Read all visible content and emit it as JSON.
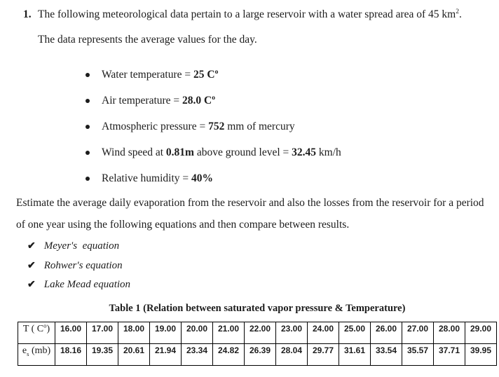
{
  "page": {
    "background": "#ffffff",
    "text_color": "#1c1c1c",
    "table_border_color": "#000000"
  },
  "icons": {
    "bullet": "•",
    "checkmark": "✔"
  },
  "problem": {
    "number": "1.",
    "line1": {
      "pre": "The following meteorological data pertain to a large reservoir with a water spread area of 45 km",
      "sup": "2",
      "post": "."
    },
    "line2": "The data represents the average values for the day."
  },
  "bullets": [
    {
      "segments": [
        {
          "t": "Water temperature = "
        },
        {
          "t": "25 C",
          "b": true
        },
        {
          "t": "o",
          "b": true,
          "sup": true
        }
      ]
    },
    {
      "segments": [
        {
          "t": "Air temperature = "
        },
        {
          "t": "28.0 C",
          "b": true
        },
        {
          "t": "o",
          "b": true,
          "sup": true
        }
      ]
    },
    {
      "segments": [
        {
          "t": "Atmospheric pressure = "
        },
        {
          "t": "752",
          "b": true
        },
        {
          "t": " mm of mercury"
        }
      ]
    },
    {
      "segments": [
        {
          "t": "Wind speed at "
        },
        {
          "t": "0.81m",
          "b": true
        },
        {
          "t": " above ground level = "
        },
        {
          "t": "32.45",
          "b": true
        },
        {
          "t": " km/h"
        }
      ]
    },
    {
      "segments": [
        {
          "t": "Relative humidity = "
        },
        {
          "t": "40%",
          "b": true
        }
      ]
    }
  ],
  "instruction": "Estimate the average daily evaporation from the reservoir and also the losses from the reservoir for a period of one year using the following equations and then compare between results.",
  "equations": [
    {
      "mark": "✔",
      "label": "Meyer's  equation"
    },
    {
      "mark": "✔",
      "label": "Rohwer's equation"
    },
    {
      "mark": "✔",
      "label": "Lake Mead equation"
    }
  ],
  "table": {
    "caption": "Table 1 (Relation between saturated vapor pressure & Temperature)",
    "row1": {
      "label": {
        "pre": "T ( C",
        "sup": "o",
        "post": ")"
      },
      "values": [
        "16.00",
        "17.00",
        "18.00",
        "19.00",
        "20.00",
        "21.00",
        "22.00",
        "23.00",
        "24.00",
        "25.00",
        "26.00",
        "27.00",
        "28.00",
        "29.00"
      ]
    },
    "row2": {
      "label": {
        "pre": "e",
        "sub": "s",
        "post": " (mb)"
      },
      "values": [
        "18.16",
        "19.35",
        "20.61",
        "21.94",
        "23.34",
        "24.82",
        "26.39",
        "28.04",
        "29.77",
        "31.61",
        "33.54",
        "35.57",
        "37.71",
        "39.95"
      ]
    }
  }
}
